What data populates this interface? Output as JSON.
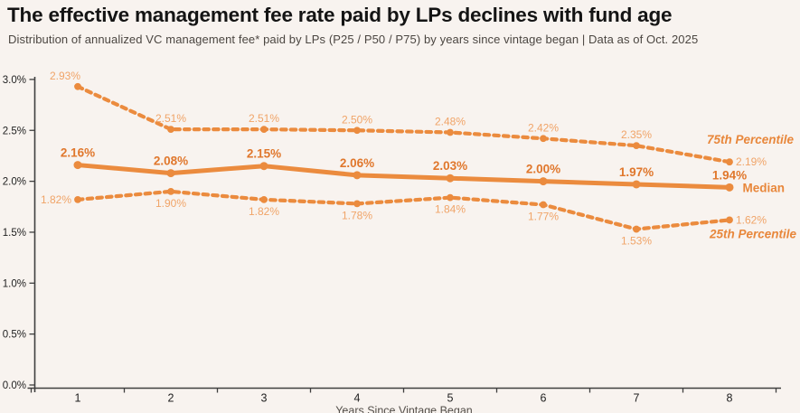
{
  "page": {
    "title": "The effective management fee rate paid by LPs declines with fund age",
    "subtitle": "Distribution of annualized VC management fee* paid by LPs (P25 / P50 / P75) by years since vintage began | Data as of Oct. 2025"
  },
  "chart_data": {
    "type": "line",
    "x": [
      1,
      2,
      3,
      4,
      5,
      6,
      7,
      8
    ],
    "x_ticks": [
      "1",
      "2",
      "3",
      "4",
      "5",
      "6",
      "7",
      "8"
    ],
    "y_ticks": [
      "0.0%",
      "0.5%",
      "1.0%",
      "1.5%",
      "2.0%",
      "2.5%",
      "3.0%"
    ],
    "xlabel": "Years Since Vintage Began",
    "ylabel": "",
    "ylim": [
      0,
      3.0
    ],
    "grid": false,
    "legend_position": "right-of-lines",
    "series": [
      {
        "name": "75th Percentile",
        "style": "dashed",
        "values": [
          2.93,
          2.51,
          2.51,
          2.5,
          2.48,
          2.42,
          2.35,
          2.19
        ],
        "labels": [
          "2.93%",
          "2.51%",
          "2.51%",
          "2.50%",
          "2.48%",
          "2.42%",
          "2.35%",
          "2.19%"
        ]
      },
      {
        "name": "Median",
        "style": "solid",
        "values": [
          2.16,
          2.08,
          2.15,
          2.06,
          2.03,
          2.0,
          1.97,
          1.94
        ],
        "labels": [
          "2.16%",
          "2.08%",
          "2.15%",
          "2.06%",
          "2.03%",
          "2.00%",
          "1.97%",
          "1.94%"
        ]
      },
      {
        "name": "25th Percentile",
        "style": "dashed",
        "values": [
          1.82,
          1.9,
          1.82,
          1.78,
          1.84,
          1.77,
          1.53,
          1.62
        ],
        "labels": [
          "1.82%",
          "1.90%",
          "1.82%",
          "1.78%",
          "1.84%",
          "1.77%",
          "1.53%",
          "1.62%"
        ]
      }
    ],
    "colors": {
      "line": "#EB8B3E",
      "series_label": "#F0A468",
      "median_label": "#E0772C",
      "legend_label": "#E8873B",
      "axis": "#3F3F3F",
      "tick_label": "#1F1F1F",
      "axis_title": "#55504B",
      "background": "#F8F3EF"
    }
  }
}
